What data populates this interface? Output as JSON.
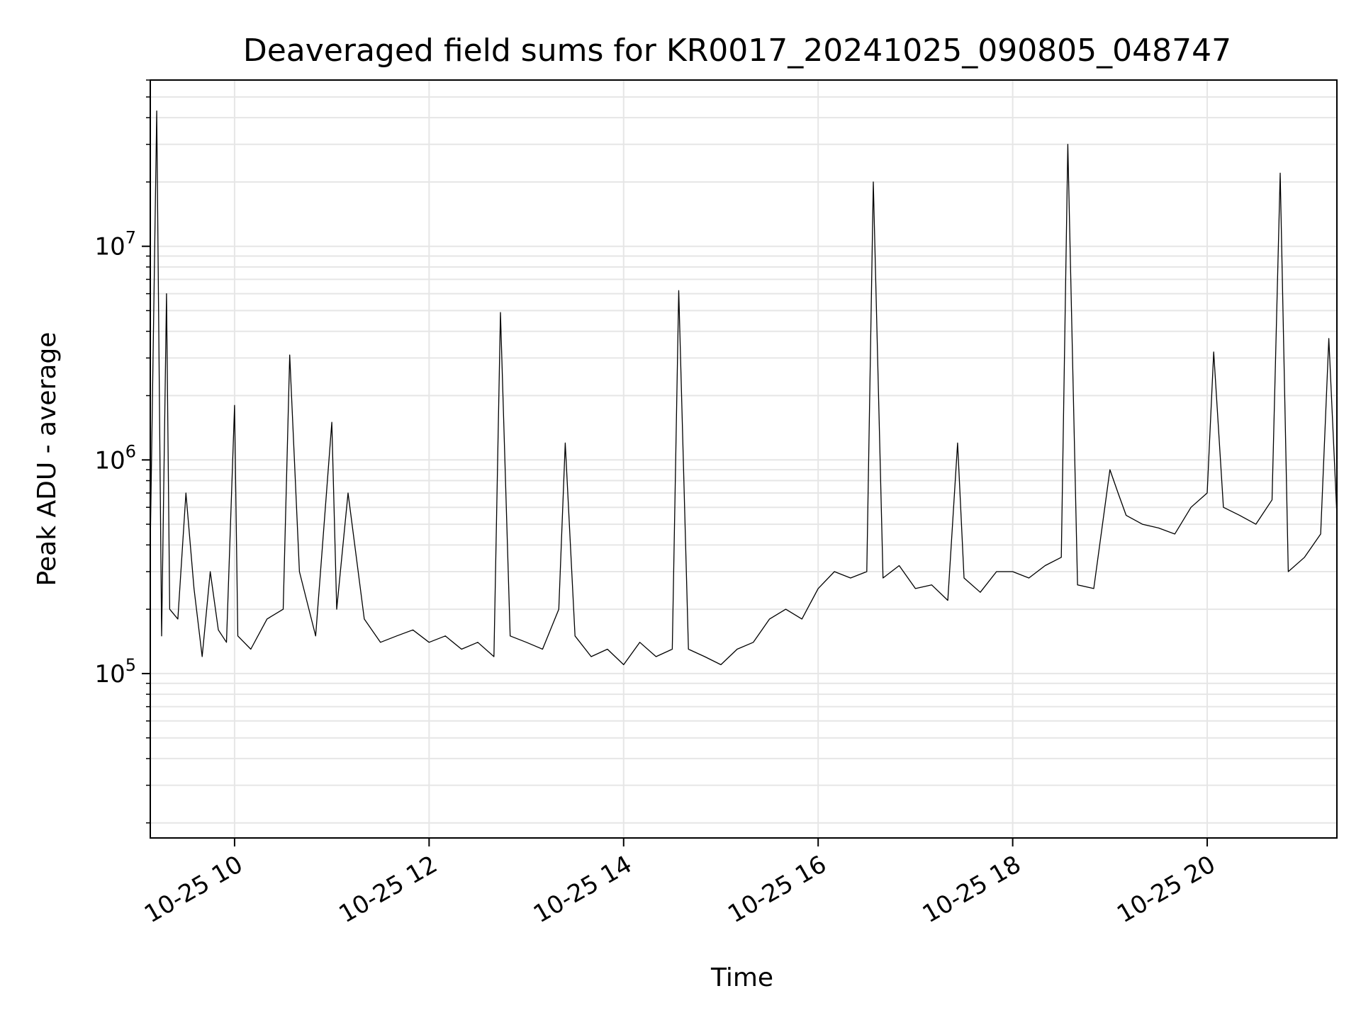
{
  "chart_data": {
    "type": "line",
    "title": "Deaveraged field sums for KR0017_20241025_090805_048747",
    "xlabel": "Time",
    "ylabel": "Peak ADU - average",
    "yscale": "log",
    "grid": true,
    "line_color": "#000000",
    "grid_color": "#e6e6e6",
    "xlim": [
      "2024-10-25 09:08",
      "2024-10-25 21:20"
    ],
    "ylim": [
      17000,
      60000000
    ],
    "x_ticks": [
      {
        "value": "2024-10-25 10:00",
        "label": "10-25 10"
      },
      {
        "value": "2024-10-25 12:00",
        "label": "10-25 12"
      },
      {
        "value": "2024-10-25 14:00",
        "label": "10-25 14"
      },
      {
        "value": "2024-10-25 16:00",
        "label": "10-25 16"
      },
      {
        "value": "2024-10-25 18:00",
        "label": "10-25 18"
      },
      {
        "value": "2024-10-25 20:00",
        "label": "10-25 20"
      }
    ],
    "y_ticks": [
      {
        "value": 100000,
        "base": "10",
        "exp": "5"
      },
      {
        "value": 1000000,
        "base": "10",
        "exp": "6"
      },
      {
        "value": 10000000,
        "base": "10",
        "exp": "7"
      }
    ],
    "x": [
      "2024-10-25 09:08",
      "2024-10-25 09:12",
      "2024-10-25 09:15",
      "2024-10-25 09:18",
      "2024-10-25 09:20",
      "2024-10-25 09:25",
      "2024-10-25 09:30",
      "2024-10-25 09:35",
      "2024-10-25 09:40",
      "2024-10-25 09:45",
      "2024-10-25 09:50",
      "2024-10-25 09:55",
      "2024-10-25 10:00",
      "2024-10-25 10:02",
      "2024-10-25 10:10",
      "2024-10-25 10:20",
      "2024-10-25 10:30",
      "2024-10-25 10:34",
      "2024-10-25 10:40",
      "2024-10-25 10:50",
      "2024-10-25 11:00",
      "2024-10-25 11:03",
      "2024-10-25 11:10",
      "2024-10-25 11:20",
      "2024-10-25 11:30",
      "2024-10-25 11:40",
      "2024-10-25 11:50",
      "2024-10-25 12:00",
      "2024-10-25 12:10",
      "2024-10-25 12:20",
      "2024-10-25 12:30",
      "2024-10-25 12:40",
      "2024-10-25 12:44",
      "2024-10-25 12:50",
      "2024-10-25 13:00",
      "2024-10-25 13:10",
      "2024-10-25 13:20",
      "2024-10-25 13:24",
      "2024-10-25 13:30",
      "2024-10-25 13:40",
      "2024-10-25 13:50",
      "2024-10-25 14:00",
      "2024-10-25 14:10",
      "2024-10-25 14:20",
      "2024-10-25 14:30",
      "2024-10-25 14:34",
      "2024-10-25 14:40",
      "2024-10-25 14:50",
      "2024-10-25 15:00",
      "2024-10-25 15:10",
      "2024-10-25 15:20",
      "2024-10-25 15:30",
      "2024-10-25 15:40",
      "2024-10-25 15:50",
      "2024-10-25 16:00",
      "2024-10-25 16:10",
      "2024-10-25 16:20",
      "2024-10-25 16:30",
      "2024-10-25 16:34",
      "2024-10-25 16:40",
      "2024-10-25 16:50",
      "2024-10-25 17:00",
      "2024-10-25 17:10",
      "2024-10-25 17:20",
      "2024-10-25 17:26",
      "2024-10-25 17:30",
      "2024-10-25 17:40",
      "2024-10-25 17:50",
      "2024-10-25 18:00",
      "2024-10-25 18:10",
      "2024-10-25 18:20",
      "2024-10-25 18:30",
      "2024-10-25 18:34",
      "2024-10-25 18:40",
      "2024-10-25 18:50",
      "2024-10-25 19:00",
      "2024-10-25 19:05",
      "2024-10-25 19:10",
      "2024-10-25 19:20",
      "2024-10-25 19:30",
      "2024-10-25 19:40",
      "2024-10-25 19:50",
      "2024-10-25 20:00",
      "2024-10-25 20:04",
      "2024-10-25 20:10",
      "2024-10-25 20:20",
      "2024-10-25 20:30",
      "2024-10-25 20:40",
      "2024-10-25 20:45",
      "2024-10-25 20:50",
      "2024-10-25 21:00",
      "2024-10-25 21:10",
      "2024-10-25 21:15",
      "2024-10-25 21:20"
    ],
    "series": [
      {
        "values": [
          400000,
          43000000,
          150000,
          6000000,
          200000,
          180000,
          700000,
          250000,
          120000,
          300000,
          160000,
          140000,
          1800000,
          150000,
          130000,
          180000,
          200000,
          3100000,
          300000,
          150000,
          1500000,
          200000,
          700000,
          180000,
          140000,
          150000,
          160000,
          140000,
          150000,
          130000,
          140000,
          120000,
          4900000,
          150000,
          140000,
          130000,
          200000,
          1200000,
          150000,
          120000,
          130000,
          110000,
          140000,
          120000,
          130000,
          6200000,
          130000,
          120000,
          110000,
          130000,
          140000,
          180000,
          200000,
          180000,
          250000,
          300000,
          280000,
          300000,
          20000000,
          280000,
          320000,
          250000,
          260000,
          220000,
          1200000,
          280000,
          240000,
          300000,
          300000,
          280000,
          320000,
          350000,
          30000000,
          260000,
          250000,
          900000,
          700000,
          550000,
          500000,
          480000,
          450000,
          600000,
          700000,
          3200000,
          600000,
          550000,
          500000,
          650000,
          22000000,
          300000,
          350000,
          450000,
          3700000,
          550000
        ]
      }
    ]
  }
}
